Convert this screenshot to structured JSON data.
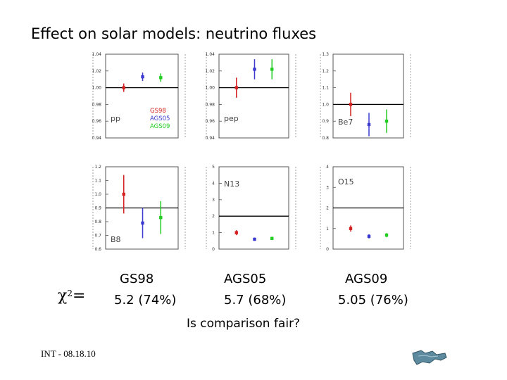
{
  "title": "Effect on solar models: neutrino fluxes",
  "colors": {
    "GS98": "#d42020",
    "AGS05": "#3a3ad0",
    "AGS09": "#22cc22"
  },
  "chart_data": [
    {
      "type": "scatter",
      "panel_label": "pp",
      "ylim": [
        0.94,
        1.04
      ],
      "yticks": [
        "0.94",
        "0.96",
        "0.98",
        "1.00",
        "1.02",
        "1.04"
      ],
      "reference_line": 1.0,
      "legend": [
        "GS98",
        "AGS05",
        "AGS09"
      ],
      "series": [
        {
          "name": "GS98",
          "value": 1.0,
          "err": 0.005
        },
        {
          "name": "AGS05",
          "value": 1.013,
          "err": 0.005
        },
        {
          "name": "AGS09",
          "value": 1.012,
          "err": 0.005
        }
      ]
    },
    {
      "type": "scatter",
      "panel_label": "pep",
      "ylim": [
        0.94,
        1.04
      ],
      "yticks": [
        "0.94",
        "0.96",
        "0.98",
        "1.00",
        "1.02",
        "1.04"
      ],
      "reference_line": 1.0,
      "series": [
        {
          "name": "GS98",
          "value": 1.0,
          "err": 0.012
        },
        {
          "name": "AGS05",
          "value": 1.022,
          "err": 0.012
        },
        {
          "name": "AGS09",
          "value": 1.022,
          "err": 0.012
        }
      ]
    },
    {
      "type": "scatter",
      "panel_label": "Be7",
      "ylim": [
        0.8,
        1.3
      ],
      "yticks": [
        "0.8",
        "0.9",
        "1.0",
        "1.1",
        "1.2",
        "1.3"
      ],
      "reference_line": 1.0,
      "series": [
        {
          "name": "GS98",
          "value": 1.0,
          "err": 0.07
        },
        {
          "name": "AGS05",
          "value": 0.88,
          "err": 0.07
        },
        {
          "name": "AGS09",
          "value": 0.9,
          "err": 0.07
        }
      ]
    },
    {
      "type": "scatter",
      "panel_label": "B8",
      "ylim": [
        0.6,
        1.2
      ],
      "yticks": [
        "0.6",
        "0.7",
        "0.8",
        "0.9",
        "1.0",
        "1.1",
        "1.2"
      ],
      "reference_line": 0.9,
      "series": [
        {
          "name": "GS98",
          "value": 1.0,
          "err": 0.14
        },
        {
          "name": "AGS05",
          "value": 0.79,
          "err": 0.11
        },
        {
          "name": "AGS09",
          "value": 0.83,
          "err": 0.12
        }
      ]
    },
    {
      "type": "scatter",
      "panel_label": "N13",
      "ylim": [
        0,
        5
      ],
      "yticks": [
        "0",
        "1",
        "2",
        "3",
        "4",
        "5"
      ],
      "reference_line": 2,
      "series": [
        {
          "name": "GS98",
          "value": 1.0,
          "err": 0.15
        },
        {
          "name": "AGS05",
          "value": 0.6,
          "err": 0.1
        },
        {
          "name": "AGS09",
          "value": 0.65,
          "err": 0.1
        }
      ]
    },
    {
      "type": "scatter",
      "panel_label": "O15",
      "ylim": [
        0,
        4
      ],
      "yticks": [
        "0",
        "1",
        "2",
        "3",
        "4"
      ],
      "reference_line": 2,
      "series": [
        {
          "name": "GS98",
          "value": 1.0,
          "err": 0.15
        },
        {
          "name": "AGS05",
          "value": 0.62,
          "err": 0.1
        },
        {
          "name": "AGS09",
          "value": 0.68,
          "err": 0.1
        }
      ]
    }
  ],
  "chi2": {
    "symbol": "χ",
    "superscript": "2",
    "equals": "=",
    "models": [
      {
        "name": "GS98",
        "value": "5.2 (74%)"
      },
      {
        "name": "AGS05",
        "value": "5.7 (68%)"
      },
      {
        "name": "AGS09",
        "value": "5.05 (76%)"
      }
    ]
  },
  "question": "Is  comparison fair?",
  "footer": "INT - 08.18.10"
}
